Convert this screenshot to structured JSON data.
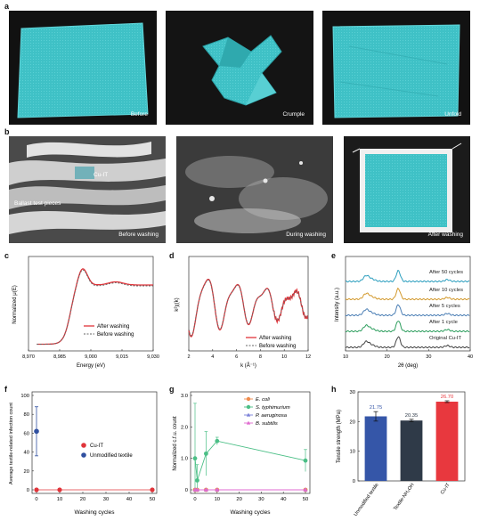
{
  "panel_a": {
    "letter": "a",
    "photos": [
      {
        "caption": "Before"
      },
      {
        "caption": "Crumple"
      },
      {
        "caption": "Unfold"
      }
    ]
  },
  "panel_b": {
    "letter": "b",
    "photos": [
      {
        "caption": "Before washing",
        "label_piece": "Cu-IT",
        "label_ballast": "Ballast test pieces"
      },
      {
        "caption": "During washing"
      },
      {
        "caption": "After washing"
      }
    ]
  },
  "colors": {
    "textile": "#3fc1c6",
    "red": "#e0343a",
    "blue": "#3050a0",
    "green": "#4bbf86",
    "gray": "#666666"
  },
  "chart_data": [
    {
      "id": "c",
      "letter": "c",
      "type": "line",
      "xlabel": "Energy (eV)",
      "ylabel": "Normalized μ(E)",
      "xlim": [
        8970,
        9030
      ],
      "xticks": [
        "8,970",
        "8,985",
        "9,000",
        "9,015",
        "9,030"
      ],
      "series": [
        {
          "name": "After washing",
          "style": "solid",
          "color": "#e0343a"
        },
        {
          "name": "Before washing",
          "style": "dashed",
          "color": "#666666"
        }
      ]
    },
    {
      "id": "d",
      "letter": "d",
      "type": "line",
      "xlabel": "k (Å⁻¹)",
      "ylabel": "k²χ(k)",
      "xlim": [
        2,
        12
      ],
      "xticks": [
        "2",
        "4",
        "6",
        "8",
        "10",
        "12"
      ],
      "series": [
        {
          "name": "After washing",
          "style": "solid",
          "color": "#e0343a"
        },
        {
          "name": "Before washing",
          "style": "dashed",
          "color": "#666666"
        }
      ]
    },
    {
      "id": "e",
      "letter": "e",
      "type": "line",
      "xlabel": "2θ (deg)",
      "ylabel": "Intensity (a.u.)",
      "xlim": [
        10,
        40
      ],
      "xticks": [
        "10",
        "20",
        "30",
        "40"
      ],
      "series": [
        {
          "name": "After 50 cycles",
          "color": "#2e9fbf"
        },
        {
          "name": "After 10 cycles",
          "color": "#d39a2e"
        },
        {
          "name": "After 5 cycles",
          "color": "#4c7fb5"
        },
        {
          "name": "After 1 cycle",
          "color": "#2e9e5e"
        },
        {
          "name": "Original Cu-IT",
          "color": "#444444"
        }
      ]
    },
    {
      "id": "f",
      "letter": "f",
      "type": "scatter",
      "xlabel": "Washing cycles",
      "ylabel": "Average textile-related infection count",
      "xlim": [
        0,
        50
      ],
      "ylim": [
        0,
        100
      ],
      "xticks": [
        0,
        10,
        20,
        30,
        40,
        50
      ],
      "yticks": [
        0,
        20,
        40,
        60,
        80,
        100
      ],
      "series": [
        {
          "name": "Cu-IT",
          "color": "#e0343a",
          "x": [
            0,
            10,
            50
          ],
          "y": [
            0,
            0,
            0
          ]
        },
        {
          "name": "Unmodified textile",
          "color": "#3050a0",
          "x": [
            0
          ],
          "y": [
            62
          ],
          "err": [
            26
          ]
        }
      ]
    },
    {
      "id": "g",
      "letter": "g",
      "type": "line",
      "xlabel": "Washing cycles",
      "ylabel": "Normalized c.f.u. count",
      "xlim": [
        0,
        50
      ],
      "ylim": [
        0,
        3.0
      ],
      "xticks": [
        0,
        10,
        20,
        30,
        40,
        50
      ],
      "yticks": [
        "0",
        "1.0",
        "2.0",
        "3.0"
      ],
      "x": [
        0,
        1,
        5,
        10,
        50
      ],
      "series": [
        {
          "name": "E. coli",
          "color": "#f08a4b",
          "marker": "circle",
          "y": [
            0,
            0,
            0,
            0,
            0
          ]
        },
        {
          "name": "S. typhimurium",
          "color": "#4bbf86",
          "marker": "circle",
          "y": [
            1.0,
            0.3,
            1.15,
            1.55,
            0.93
          ],
          "err": [
            1.75,
            0.5,
            0.7,
            0.12,
            0.35
          ]
        },
        {
          "name": "P. aeruginosa",
          "color": "#7a80d8",
          "marker": "triangle",
          "y": [
            0,
            0,
            0,
            0,
            0
          ]
        },
        {
          "name": "B. subtilis",
          "color": "#e06ad0",
          "marker": "triangle",
          "y": [
            0,
            0,
            0,
            0,
            0
          ]
        }
      ]
    },
    {
      "id": "h",
      "letter": "h",
      "type": "bar",
      "ylabel": "Tensile strength (MPa)",
      "ylim": [
        0,
        30
      ],
      "yticks": [
        0,
        10,
        20,
        30
      ],
      "categories": [
        "Unmodified textile",
        "Textile-NH₂OH",
        "Cu-IT"
      ],
      "values": [
        21.75,
        20.35,
        26.7
      ],
      "value_labels": [
        "21.75",
        "20.35",
        "26.70"
      ],
      "errors": [
        1.6,
        0.4,
        0.3
      ],
      "bar_colors": [
        "#3556a8",
        "#2f3a48",
        "#e8383e"
      ],
      "label_colors": [
        "#3556a8",
        "#2f3a48",
        "#e8383e"
      ]
    }
  ]
}
